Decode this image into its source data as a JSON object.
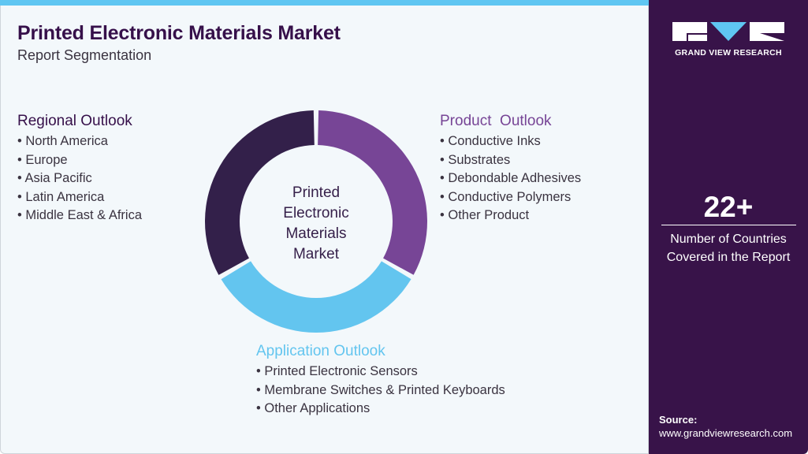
{
  "header": {
    "title": "Printed Electronic Materials Market",
    "subtitle": "Report Segmentation"
  },
  "donut": {
    "center_label_lines": [
      "Printed",
      "Electronic",
      "Materials",
      "Market"
    ],
    "segments": [
      {
        "name": "Product Outlook",
        "color": "#774596",
        "share": 0.3333
      },
      {
        "name": "Application Outlook",
        "color": "#63c5ef",
        "share": 0.3333
      },
      {
        "name": "Regional Outlook",
        "color": "#33204a",
        "share": 0.3333
      }
    ]
  },
  "regional": {
    "heading": "Regional Outlook",
    "items": [
      "North America",
      "Europe",
      "Asia Pacific",
      "Latin America",
      "Middle East & Africa"
    ]
  },
  "product": {
    "heading": "Product  Outlook",
    "items": [
      "Conductive Inks",
      "Substrates",
      "Debondable Adhesives",
      "Conductive Polymers",
      "Other Product"
    ]
  },
  "application": {
    "heading": "Application Outlook",
    "items": [
      "Printed Electronic Sensors",
      "Membrane Switches & Printed Keyboards",
      "Other Applications"
    ]
  },
  "sidebar": {
    "logo_text": "GRAND VIEW RESEARCH",
    "stat": "22+",
    "stat_desc_1": "Number of Countries",
    "stat_desc_2": "Covered in the Report",
    "source_label": "Source:",
    "source_url": "www.grandviewresearch.com"
  },
  "colors": {
    "panel": "#381349",
    "accent_blue": "#5fc6f2",
    "title": "#36104a"
  }
}
